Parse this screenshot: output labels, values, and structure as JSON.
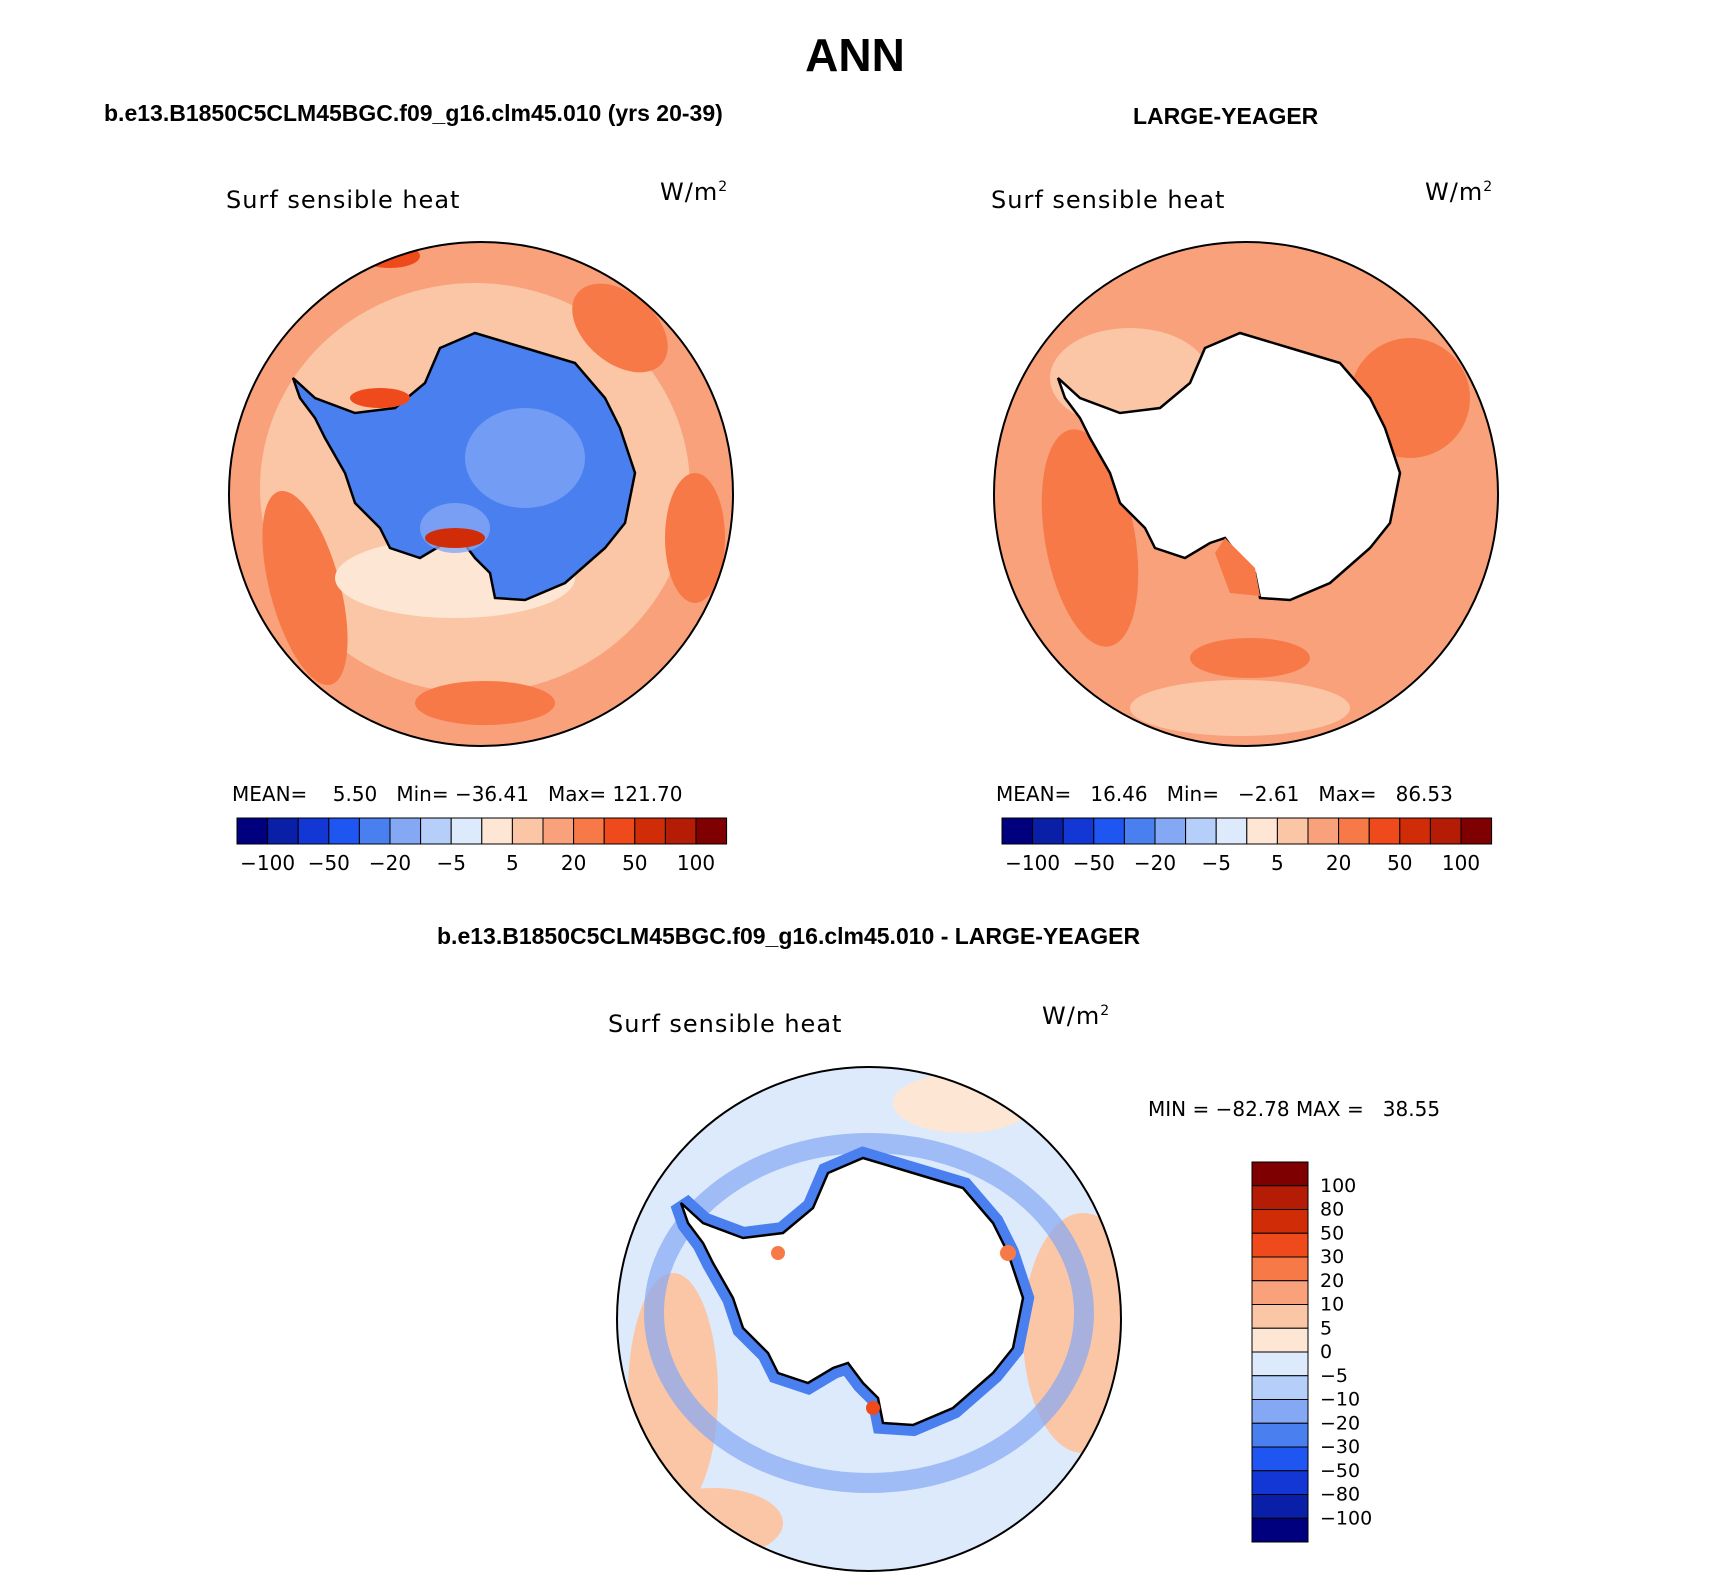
{
  "title": "ANN",
  "panels": [
    {
      "id": "model",
      "heading": "b.e13.B1850C5CLM45BGC.f09_g16.clm45.010 (yrs 20-39)",
      "variable": "Surf sensible heat",
      "units_base": "W/m",
      "units_exp": "2",
      "mean_label": "MEAN=",
      "mean": "5.50",
      "min_label": "Min=",
      "min": "−36.41",
      "max_label": "Max=",
      "max": "121.70",
      "land_fill": "blue"
    },
    {
      "id": "obs",
      "heading": "LARGE-YEAGER",
      "variable": "Surf sensible heat",
      "units_base": "W/m",
      "units_exp": "2",
      "mean_label": "MEAN=",
      "mean": "16.46",
      "min_label": "Min=",
      "min": "−2.61",
      "max_label": "Max=",
      "max": "86.53",
      "land_fill": "none"
    }
  ],
  "diff": {
    "heading": "b.e13.B1850C5CLM45BGC.f09_g16.clm45.010 - LARGE-YEAGER",
    "variable": "Surf sensible heat",
    "units_base": "W/m",
    "units_exp": "2",
    "minmax": "MIN = −82.78 MAX =   38.55"
  },
  "colorbar_h": {
    "colors": [
      "#00007f",
      "#0a1fa8",
      "#1237d4",
      "#1f55f0",
      "#4a7ff0",
      "#85a8f5",
      "#b5cffa",
      "#dceafb",
      "#fde6d4",
      "#fbc6a5",
      "#f9a17a",
      "#f77948",
      "#ee4a1c",
      "#d12c08",
      "#b51c06",
      "#7e0000"
    ],
    "labels": [
      "−100",
      "−50",
      "−20",
      "−5",
      "5",
      "20",
      "50",
      "100"
    ]
  },
  "colorbar_v": {
    "colors": [
      "#7e0000",
      "#b51c06",
      "#d12c08",
      "#ee4a1c",
      "#f77948",
      "#f9a17a",
      "#fbc6a5",
      "#fde6d4",
      "#dceafb",
      "#b5cffa",
      "#85a8f5",
      "#4a7ff0",
      "#1f55f0",
      "#1237d4",
      "#0a1fa8",
      "#00007f"
    ],
    "labels": [
      "100",
      "80",
      "50",
      "30",
      "20",
      "10",
      "5",
      "0",
      "−5",
      "−10",
      "−20",
      "−30",
      "−50",
      "−80",
      "−100"
    ]
  },
  "colors": {
    "ocean_warm": "#f9a17a",
    "ocean_hot": "#f77948",
    "ocean_light": "#fbc6a5",
    "land_blue": "#4a7ff0",
    "diff_ocean": "#dceafb",
    "diff_coast": "#4a7ff0"
  }
}
